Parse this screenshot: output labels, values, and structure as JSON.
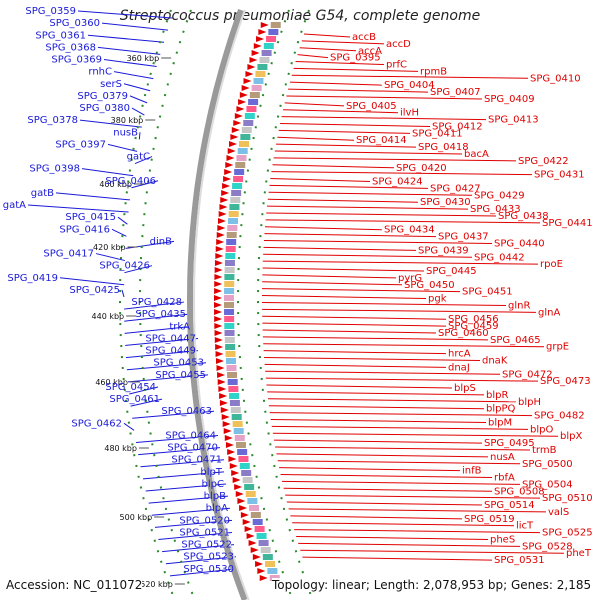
{
  "title": "Streptococcus pneumoniae G54, complete genome",
  "accession": "Accession: NC_011072",
  "stats": "Topology: linear; Length: 2,078,953 bp; Genes: 2,185",
  "colors": {
    "left_label": "#1a1ad8",
    "right_label": "#e00000",
    "backbone": "#9a9a9a",
    "tick": "#2a8a2a"
  },
  "ticks": [
    "360 kbp",
    "380 kbp",
    "400 kbp",
    "420 kbp",
    "440 kbp",
    "460 kbp",
    "480 kbp",
    "500 kbp",
    "520 kbp"
  ],
  "left_labels": [
    "SPG_0359",
    "SPG_0360",
    "SPG_0361",
    "SPG_0368",
    "SPG_0369",
    "rnhC",
    "serS",
    "SPG_0379",
    "SPG_0380",
    "SPG_0378",
    "nusB",
    "SPG_0397",
    "gatC",
    "SPG_0398",
    "SPG_0406",
    "gatB",
    "gatA",
    "SPG_0415",
    "SPG_0416",
    "dinB",
    "SPG_0417",
    "SPG_0426",
    "SPG_0419",
    "SPG_0425",
    "SPG_0428",
    "SPG_0435",
    "trkA",
    "SPG_0447",
    "SPG_0449",
    "SPG_0453",
    "SPG_0455",
    "SPG_0454",
    "SPG_0461",
    "SPG_0463",
    "SPG_0462",
    "SPG_0464",
    "SPG_0470",
    "SPG_0471",
    "blpT",
    "blpC",
    "blpB",
    "blpA",
    "SPG_0520",
    "SPG_0521",
    "SPG_0522",
    "SPG_0523",
    "SPG_0530"
  ],
  "right_labels": [
    "accB",
    "accD",
    "accA",
    "SPG_0395",
    "prfC",
    "rpmB",
    "SPG_0410",
    "SPG_0404",
    "SPG_0407",
    "SPG_0409",
    "SPG_0405",
    "ilvH",
    "SPG_0413",
    "SPG_0412",
    "SPG_0411",
    "SPG_0414",
    "SPG_0418",
    "bacA",
    "SPG_0422",
    "SPG_0420",
    "SPG_0431",
    "SPG_0424",
    "SPG_0427",
    "SPG_0429",
    "SPG_0430",
    "SPG_0433",
    "SPG_0438",
    "SPG_0441",
    "SPG_0434",
    "SPG_0437",
    "SPG_0440",
    "SPG_0439",
    "SPG_0442",
    "rpoE",
    "SPG_0445",
    "pyrG",
    "SPG_0450",
    "SPG_0451",
    "pgk",
    "glnR",
    "glnA",
    "SPG_0456",
    "SPG_0459",
    "SPG_0460",
    "SPG_0465",
    "grpE",
    "hrcA",
    "dnaK",
    "dnaJ",
    "SPG_0472",
    "SPG_0473",
    "blpS",
    "blpR",
    "blpH",
    "blpPQ",
    "SPG_0482",
    "blpM",
    "blpO",
    "blpX",
    "SPG_0495",
    "trmB",
    "nusA",
    "SPG_0500",
    "infB",
    "rbfA",
    "SPG_0504",
    "SPG_0508",
    "SPG_0510",
    "SPG_0514",
    "valS",
    "SPG_0519",
    "licT",
    "SPG_0525",
    "pheS",
    "SPG_0528",
    "pheT",
    "SPG_0531"
  ]
}
